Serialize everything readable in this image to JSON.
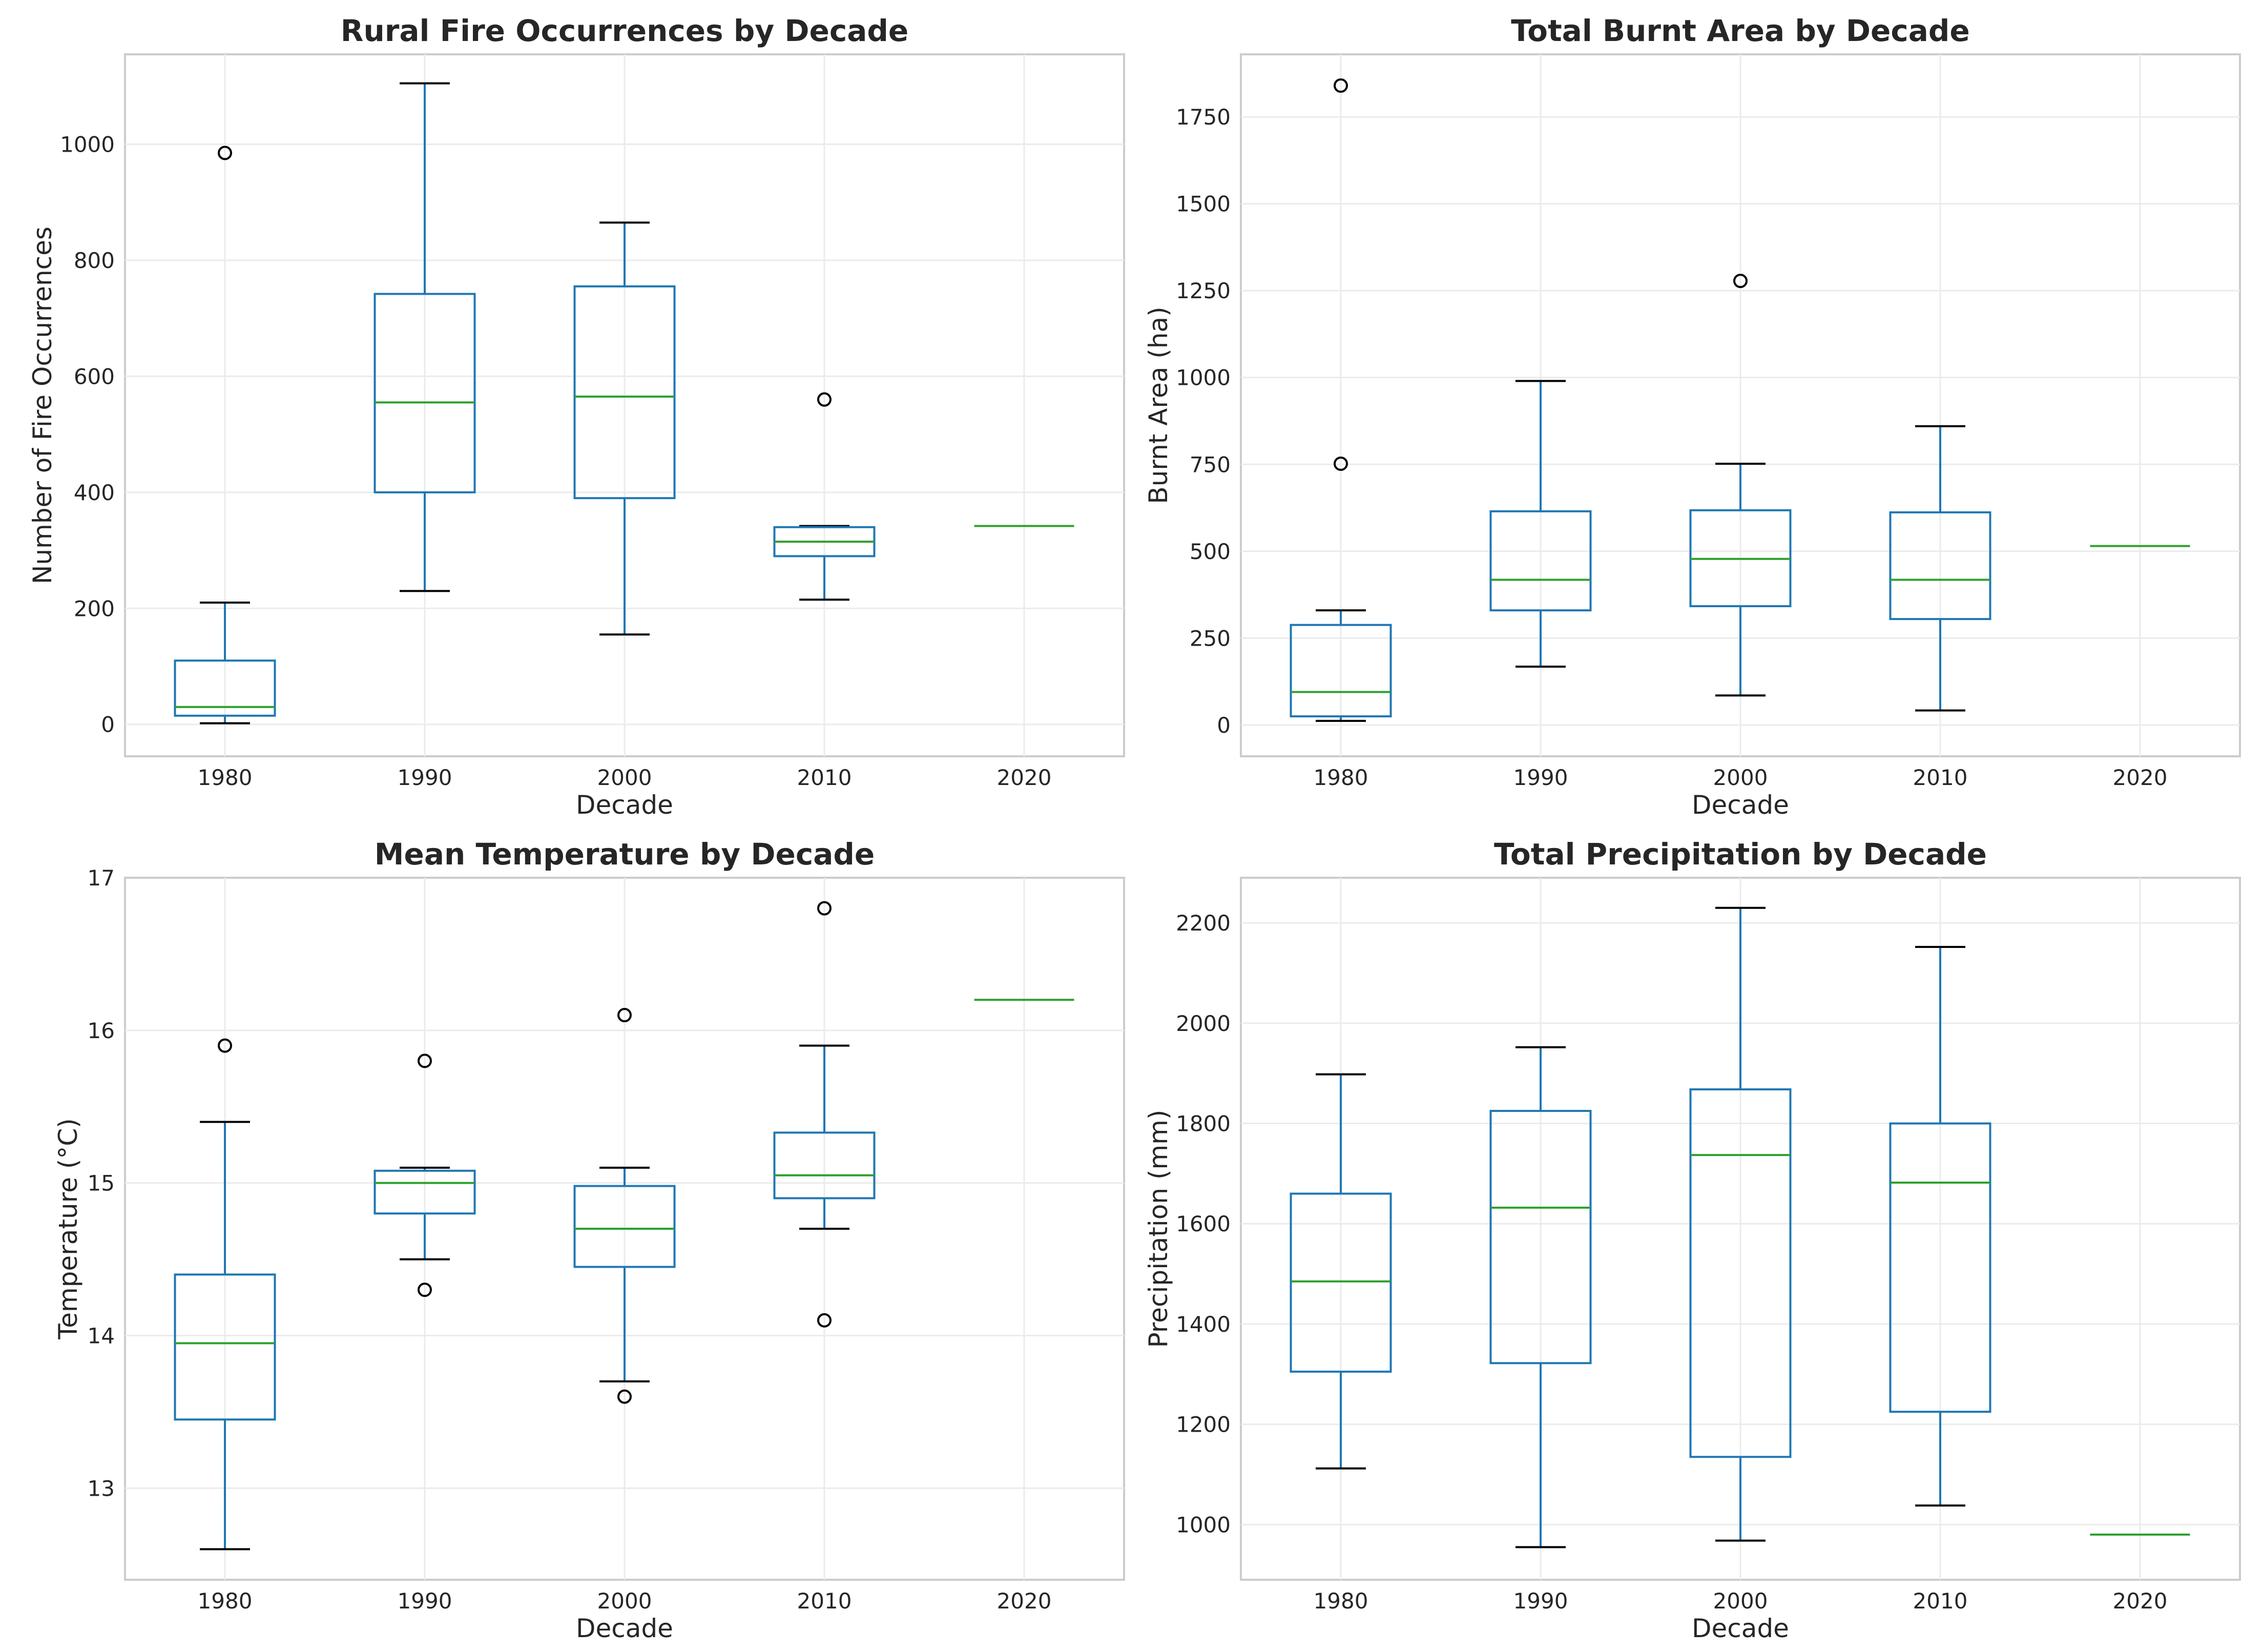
{
  "chart_data": [
    {
      "type": "box",
      "title": "Rural Fire Occurrences by Decade",
      "xlabel": "Decade",
      "ylabel": "Number of Fire Occurrences",
      "ylim": [
        -55,
        1155
      ],
      "yticks": [
        0,
        200,
        400,
        600,
        800,
        1000
      ],
      "yticklabels": [
        "0",
        "200",
        "400",
        "600",
        "800",
        "1000"
      ],
      "categories": [
        "1980",
        "1990",
        "2000",
        "2010",
        "2020"
      ],
      "boxes": [
        {
          "min": 2,
          "q1": 15,
          "median": 30,
          "q3": 110,
          "max": 210,
          "fliers": [
            985
          ]
        },
        {
          "min": 230,
          "q1": 400,
          "median": 555,
          "q3": 742,
          "max": 1105,
          "fliers": []
        },
        {
          "min": 155,
          "q1": 390,
          "median": 565,
          "q3": 755,
          "max": 865,
          "fliers": []
        },
        {
          "min": 215,
          "q1": 290,
          "median": 315,
          "q3": 340,
          "max": 342,
          "fliers": [
            560
          ]
        },
        {
          "min": 342,
          "q1": 342,
          "median": 342,
          "q3": 342,
          "max": 342,
          "fliers": []
        }
      ]
    },
    {
      "type": "box",
      "title": "Total Burnt Area by Decade",
      "xlabel": "Decade",
      "ylabel": "Burnt Area (ha)",
      "ylim": [
        -90,
        1930
      ],
      "yticks": [
        0,
        250,
        500,
        750,
        1000,
        1250,
        1500,
        1750
      ],
      "yticklabels": [
        "0",
        "250",
        "500",
        "750",
        "1000",
        "1250",
        "1500",
        "1750"
      ],
      "categories": [
        "1980",
        "1990",
        "2000",
        "2010",
        "2020"
      ],
      "boxes": [
        {
          "min": 12,
          "q1": 25,
          "median": 95,
          "q3": 288,
          "max": 330,
          "fliers": [
            752,
            1840
          ]
        },
        {
          "min": 168,
          "q1": 330,
          "median": 418,
          "q3": 615,
          "max": 990,
          "fliers": []
        },
        {
          "min": 85,
          "q1": 342,
          "median": 478,
          "q3": 618,
          "max": 752,
          "fliers": [
            1278
          ]
        },
        {
          "min": 42,
          "q1": 305,
          "median": 418,
          "q3": 612,
          "max": 860,
          "fliers": []
        },
        {
          "min": 515,
          "q1": 515,
          "median": 515,
          "q3": 515,
          "max": 515,
          "fliers": []
        }
      ]
    },
    {
      "type": "box",
      "title": "Mean Temperature by Decade",
      "xlabel": "Decade",
      "ylabel": "Temperature (°C)",
      "ylim": [
        12.4,
        17.0
      ],
      "yticks": [
        13,
        14,
        15,
        16,
        17
      ],
      "yticklabels": [
        "13",
        "14",
        "15",
        "16",
        "17"
      ],
      "categories": [
        "1980",
        "1990",
        "2000",
        "2010",
        "2020"
      ],
      "boxes": [
        {
          "min": 12.6,
          "q1": 13.45,
          "median": 13.95,
          "q3": 14.4,
          "max": 15.4,
          "fliers": [
            15.9
          ]
        },
        {
          "min": 14.5,
          "q1": 14.8,
          "median": 15.0,
          "q3": 15.08,
          "max": 15.1,
          "fliers": [
            15.8,
            14.3
          ]
        },
        {
          "min": 13.7,
          "q1": 14.45,
          "median": 14.7,
          "q3": 14.98,
          "max": 15.1,
          "fliers": [
            16.1,
            13.6
          ]
        },
        {
          "min": 14.7,
          "q1": 14.9,
          "median": 15.05,
          "q3": 15.33,
          "max": 15.9,
          "fliers": [
            16.8,
            14.1
          ]
        },
        {
          "min": 16.2,
          "q1": 16.2,
          "median": 16.2,
          "q3": 16.2,
          "max": 16.2,
          "fliers": []
        }
      ]
    },
    {
      "type": "box",
      "title": "Total Precipitation by Decade",
      "xlabel": "Decade",
      "ylabel": "Precipitation (mm)",
      "ylim": [
        890,
        2290
      ],
      "yticks": [
        1000,
        1200,
        1400,
        1600,
        1800,
        2000,
        2200
      ],
      "yticklabels": [
        "1000",
        "1200",
        "1400",
        "1600",
        "1800",
        "2000",
        "2200"
      ],
      "categories": [
        "1980",
        "1990",
        "2000",
        "2010",
        "2020"
      ],
      "boxes": [
        {
          "min": 1112,
          "q1": 1305,
          "median": 1485,
          "q3": 1660,
          "max": 1898,
          "fliers": []
        },
        {
          "min": 955,
          "q1": 1322,
          "median": 1632,
          "q3": 1825,
          "max": 1952,
          "fliers": []
        },
        {
          "min": 968,
          "q1": 1135,
          "median": 1737,
          "q3": 1868,
          "max": 2230,
          "fliers": []
        },
        {
          "min": 1038,
          "q1": 1225,
          "median": 1682,
          "q3": 1800,
          "max": 2152,
          "fliers": []
        },
        {
          "min": 980,
          "q1": 980,
          "median": 980,
          "q3": 980,
          "max": 980,
          "fliers": []
        }
      ]
    }
  ]
}
